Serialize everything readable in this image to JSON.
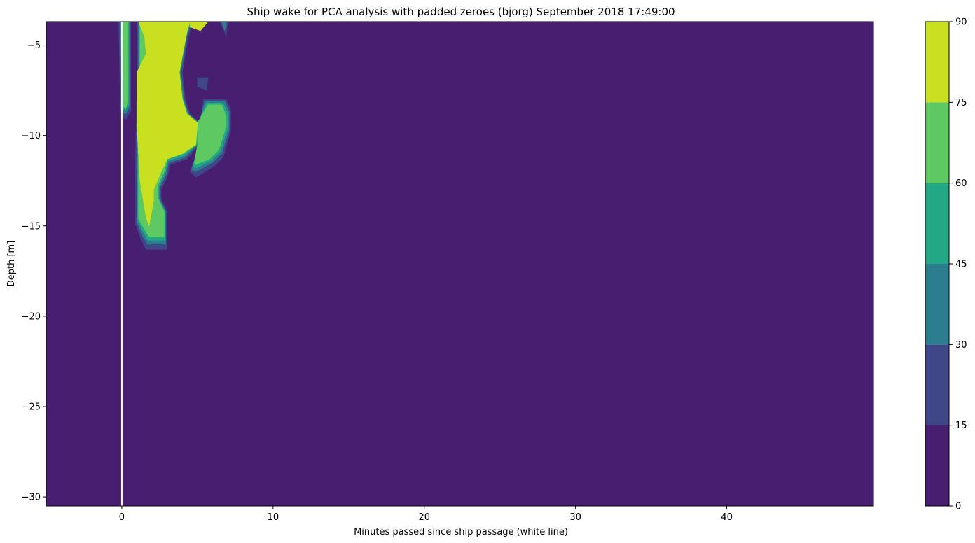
{
  "chart_data": {
    "type": "heatmap",
    "title": "Ship wake for PCA analysis with padded zeroes (bjorg) September 2018 17:49:00",
    "xlabel": "Minutes passed since ship passage (white line)",
    "ylabel": "Depth [m]",
    "xlim": [
      -5,
      49.7
    ],
    "ylim": [
      -30.5,
      -3.7
    ],
    "xticks": [
      0,
      10,
      20,
      30,
      40
    ],
    "yticks": [
      -5,
      -10,
      -15,
      -20,
      -25,
      -30
    ],
    "grid": false,
    "marker_line": {
      "x": 0,
      "color": "#ffffff"
    },
    "colorbar": {
      "levels": [
        0,
        15,
        30,
        45,
        60,
        75,
        90
      ],
      "colors": [
        "#481f70",
        "#3f4788",
        "#2c7e8e",
        "#22a884",
        "#5ec962",
        "#c8e020"
      ]
    },
    "contour_regions": [
      {
        "level_min": 15,
        "color": "#3f4788",
        "polygons": [
          [
            [
              1.0,
              -3.7
            ],
            [
              4.7,
              -3.7
            ],
            [
              4.4,
              -4.5
            ],
            [
              4.0,
              -6.5
            ],
            [
              4.2,
              -8.0
            ],
            [
              4.5,
              -8.8
            ],
            [
              5.2,
              -9.3
            ],
            [
              5.1,
              -10.5
            ],
            [
              4.3,
              -11.3
            ],
            [
              3.2,
              -11.6
            ],
            [
              3.0,
              -12.3
            ],
            [
              2.6,
              -13.0
            ],
            [
              2.6,
              -13.5
            ],
            [
              3.0,
              -14.2
            ],
            [
              3.0,
              -16.3
            ],
            [
              1.6,
              -16.3
            ],
            [
              1.3,
              -15.8
            ],
            [
              0.9,
              -14.9
            ],
            [
              0.9,
              -11.0
            ],
            [
              1.0,
              -7.5
            ]
          ],
          [
            [
              5.0,
              -3.7
            ],
            [
              5.5,
              -3.7
            ],
            [
              5.2,
              -4.3
            ]
          ],
          [
            [
              6.5,
              -3.7
            ],
            [
              7.0,
              -3.7
            ],
            [
              6.9,
              -4.5
            ]
          ],
          [
            [
              5.0,
              -6.8
            ],
            [
              5.7,
              -6.8
            ],
            [
              5.6,
              -7.5
            ],
            [
              5.0,
              -7.3
            ]
          ],
          [
            [
              5.4,
              -8.0
            ],
            [
              6.9,
              -8.0
            ],
            [
              7.2,
              -8.6
            ],
            [
              7.2,
              -9.7
            ],
            [
              6.7,
              -11.2
            ],
            [
              6.1,
              -11.7
            ],
            [
              4.9,
              -12.3
            ],
            [
              4.5,
              -12.0
            ],
            [
              5.2,
              -10.5
            ],
            [
              5.2,
              -9.3
            ]
          ],
          [
            [
              -0.2,
              -3.7
            ],
            [
              0.6,
              -3.7
            ],
            [
              0.6,
              -8.6
            ],
            [
              0.3,
              -9.1
            ],
            [
              0.0,
              -9.0
            ],
            [
              -0.1,
              -8.4
            ]
          ]
        ]
      },
      {
        "level_min": 30,
        "color": "#2c7e8e",
        "polygons": [
          [
            [
              1.1,
              -3.7
            ],
            [
              4.6,
              -3.7
            ],
            [
              4.3,
              -4.5
            ],
            [
              3.9,
              -6.5
            ],
            [
              4.1,
              -8.0
            ],
            [
              4.4,
              -8.8
            ],
            [
              5.1,
              -9.3
            ],
            [
              5.0,
              -10.5
            ],
            [
              4.2,
              -11.2
            ],
            [
              3.1,
              -11.5
            ],
            [
              2.9,
              -12.2
            ],
            [
              2.5,
              -12.9
            ],
            [
              2.5,
              -13.5
            ],
            [
              2.9,
              -14.2
            ],
            [
              2.9,
              -16.0
            ],
            [
              1.7,
              -16.0
            ],
            [
              1.4,
              -15.6
            ],
            [
              1.0,
              -14.8
            ],
            [
              1.0,
              -11.0
            ],
            [
              1.1,
              -7.5
            ]
          ],
          [
            [
              5.1,
              -3.7
            ],
            [
              5.4,
              -3.7
            ],
            [
              5.2,
              -4.1
            ]
          ],
          [
            [
              6.6,
              -3.7
            ],
            [
              6.9,
              -3.7
            ],
            [
              6.8,
              -4.2
            ]
          ],
          [
            [
              5.5,
              -8.1
            ],
            [
              6.8,
              -8.1
            ],
            [
              7.1,
              -8.7
            ],
            [
              7.1,
              -9.7
            ],
            [
              6.6,
              -11.0
            ],
            [
              6.0,
              -11.5
            ],
            [
              4.9,
              -12.0
            ],
            [
              4.6,
              -11.9
            ],
            [
              5.1,
              -10.5
            ],
            [
              5.1,
              -9.3
            ]
          ],
          [
            [
              -0.1,
              -3.7
            ],
            [
              0.5,
              -3.7
            ],
            [
              0.5,
              -8.4
            ],
            [
              0.3,
              -8.8
            ],
            [
              0.0,
              -8.7
            ]
          ]
        ]
      },
      {
        "level_min": 45,
        "color": "#22a884",
        "polygons": [
          [
            [
              1.15,
              -3.7
            ],
            [
              4.55,
              -3.7
            ],
            [
              4.25,
              -4.5
            ],
            [
              3.85,
              -6.5
            ],
            [
              4.05,
              -8.0
            ],
            [
              4.35,
              -8.8
            ],
            [
              5.05,
              -9.3
            ],
            [
              4.95,
              -10.5
            ],
            [
              4.15,
              -11.1
            ],
            [
              3.05,
              -11.4
            ],
            [
              2.85,
              -12.1
            ],
            [
              2.45,
              -12.8
            ],
            [
              2.45,
              -13.5
            ],
            [
              2.85,
              -14.2
            ],
            [
              2.85,
              -15.8
            ],
            [
              1.75,
              -15.8
            ],
            [
              1.45,
              -15.4
            ],
            [
              1.05,
              -14.7
            ],
            [
              1.05,
              -11.0
            ],
            [
              1.15,
              -7.5
            ]
          ],
          [
            [
              5.6,
              -8.2
            ],
            [
              6.7,
              -8.2
            ],
            [
              7.0,
              -8.8
            ],
            [
              7.0,
              -9.6
            ],
            [
              6.5,
              -10.9
            ],
            [
              5.9,
              -11.4
            ],
            [
              4.9,
              -11.8
            ],
            [
              4.7,
              -11.7
            ],
            [
              5.05,
              -10.5
            ],
            [
              5.05,
              -9.3
            ]
          ],
          [
            [
              0.0,
              -3.7
            ],
            [
              0.45,
              -3.7
            ],
            [
              0.45,
              -8.3
            ],
            [
              0.25,
              -8.6
            ],
            [
              0.05,
              -8.5
            ]
          ]
        ]
      },
      {
        "level_min": 60,
        "color": "#5ec962",
        "polygons": [
          [
            [
              1.2,
              -3.7
            ],
            [
              4.5,
              -3.7
            ],
            [
              4.2,
              -4.5
            ],
            [
              3.8,
              -6.5
            ],
            [
              4.0,
              -8.0
            ],
            [
              4.3,
              -8.8
            ],
            [
              5.0,
              -9.3
            ],
            [
              4.9,
              -10.5
            ],
            [
              4.1,
              -11.0
            ],
            [
              3.0,
              -11.3
            ],
            [
              2.8,
              -12.0
            ],
            [
              2.4,
              -12.7
            ],
            [
              2.4,
              -13.5
            ],
            [
              2.8,
              -14.2
            ],
            [
              2.8,
              -15.6
            ],
            [
              1.8,
              -15.6
            ],
            [
              1.5,
              -15.2
            ],
            [
              1.1,
              -14.6
            ],
            [
              1.1,
              -11.0
            ],
            [
              1.2,
              -7.5
            ]
          ],
          [
            [
              5.7,
              -8.3
            ],
            [
              6.6,
              -8.3
            ],
            [
              6.9,
              -8.9
            ],
            [
              6.9,
              -9.5
            ],
            [
              6.4,
              -10.8
            ],
            [
              5.8,
              -11.3
            ],
            [
              4.9,
              -11.6
            ],
            [
              4.8,
              -11.5
            ],
            [
              5.0,
              -10.5
            ],
            [
              5.0,
              -9.3
            ]
          ],
          [
            [
              0.05,
              -3.7
            ],
            [
              0.4,
              -3.7
            ],
            [
              0.4,
              -8.2
            ],
            [
              0.25,
              -8.5
            ],
            [
              0.1,
              -8.4
            ]
          ]
        ]
      },
      {
        "level_min": 75,
        "color": "#c8e020",
        "polygons": [
          [
            [
              1.1,
              -3.7
            ],
            [
              4.5,
              -3.7
            ],
            [
              4.5,
              -4.0
            ],
            [
              5.2,
              -4.2
            ],
            [
              5.7,
              -3.7
            ],
            [
              4.5,
              -3.7
            ],
            [
              4.2,
              -4.5
            ],
            [
              3.8,
              -6.5
            ],
            [
              4.0,
              -8.0
            ],
            [
              4.3,
              -8.8
            ],
            [
              5.0,
              -9.3
            ],
            [
              4.9,
              -10.5
            ],
            [
              4.0,
              -11.0
            ],
            [
              3.0,
              -11.3
            ],
            [
              2.6,
              -12.0
            ],
            [
              2.1,
              -13.0
            ],
            [
              2.1,
              -13.6
            ],
            [
              1.8,
              -15.0
            ],
            [
              1.6,
              -14.5
            ],
            [
              1.2,
              -12.5
            ],
            [
              1.0,
              -9.5
            ],
            [
              1.0,
              -6.5
            ],
            [
              1.6,
              -5.5
            ],
            [
              1.5,
              -4.5
            ]
          ],
          [
            [
              1.2,
              -3.7
            ],
            [
              4.5,
              -3.7
            ],
            [
              4.3,
              -4.3
            ],
            [
              3.8,
              -6.5
            ],
            [
              4.0,
              -8.0
            ],
            [
              4.3,
              -8.8
            ],
            [
              4.5,
              -9.3
            ],
            [
              4.4,
              -10.5
            ],
            [
              3.5,
              -10.9
            ],
            [
              2.6,
              -11.3
            ],
            [
              2.3,
              -12.0
            ],
            [
              2.0,
              -13.0
            ],
            [
              1.9,
              -14.6
            ],
            [
              1.6,
              -14.0
            ],
            [
              1.2,
              -12.5
            ],
            [
              1.0,
              -9.5
            ],
            [
              1.0,
              -6.5
            ],
            [
              1.6,
              -5.5
            ],
            [
              1.6,
              -4.5
            ]
          ]
        ]
      }
    ]
  }
}
